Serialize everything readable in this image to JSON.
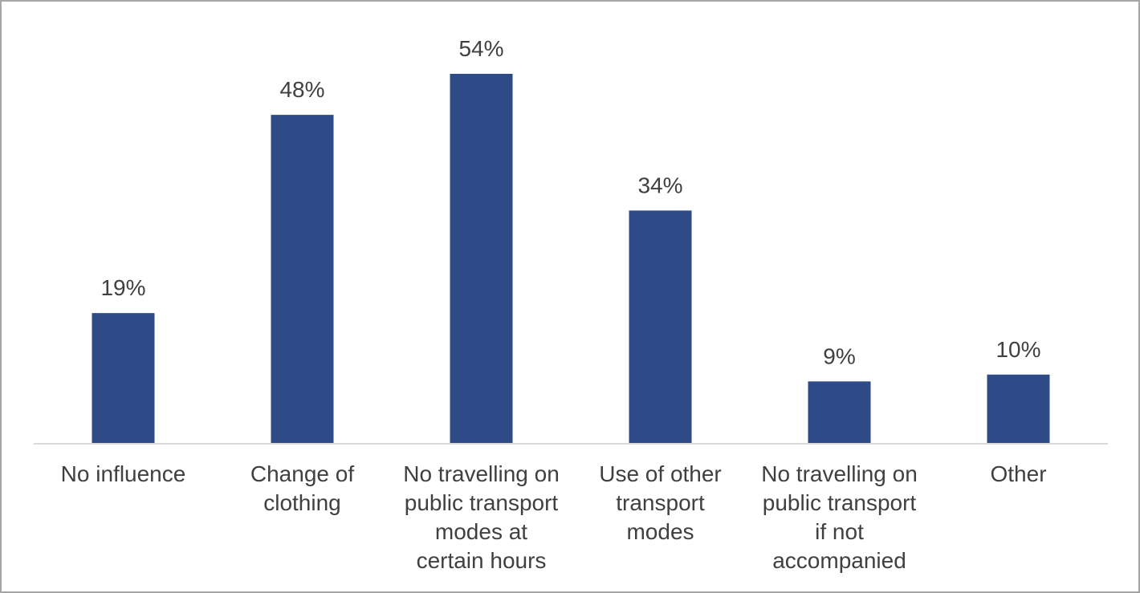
{
  "chart_data": {
    "type": "bar",
    "categories": [
      [
        "No influence"
      ],
      [
        "Change of",
        "clothing"
      ],
      [
        "No travelling on",
        "public transport",
        "modes at",
        "certain hours"
      ],
      [
        "Use of other",
        "transport",
        "modes"
      ],
      [
        "No travelling on",
        "public transport",
        "if not",
        "accompanied"
      ],
      [
        "Other"
      ]
    ],
    "values": [
      19,
      48,
      54,
      34,
      9,
      10
    ],
    "data_labels": [
      "19%",
      "48%",
      "54%",
      "34%",
      "9%",
      "10%"
    ],
    "ylim": [
      0,
      54
    ],
    "bar_color": "#2f4b87",
    "grid": false,
    "legend": "none"
  }
}
